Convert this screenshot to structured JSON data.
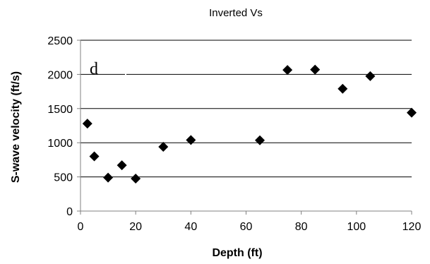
{
  "chart_data": {
    "type": "scatter",
    "title": "Inverted Vs",
    "xlabel": "Depth (ft)",
    "ylabel": "S-wave velocity (ft/s)",
    "xlim": [
      0,
      120
    ],
    "ylim": [
      0,
      2500
    ],
    "x_ticks": [
      0,
      20,
      40,
      60,
      80,
      100,
      120
    ],
    "y_ticks": [
      0,
      500,
      1000,
      1500,
      2000,
      2500
    ],
    "grid": "horizontal",
    "annotation": "d",
    "series": [
      {
        "marker": "diamond",
        "color": "#000000",
        "points": [
          {
            "x": 2.5,
            "y": 1280
          },
          {
            "x": 5,
            "y": 800
          },
          {
            "x": 10,
            "y": 490
          },
          {
            "x": 15,
            "y": 670
          },
          {
            "x": 20,
            "y": 475
          },
          {
            "x": 30,
            "y": 940
          },
          {
            "x": 40,
            "y": 1040
          },
          {
            "x": 65,
            "y": 1035
          },
          {
            "x": 75,
            "y": 2065
          },
          {
            "x": 85,
            "y": 2070
          },
          {
            "x": 95,
            "y": 1790
          },
          {
            "x": 105,
            "y": 1975
          },
          {
            "x": 120,
            "y": 1440
          }
        ]
      }
    ]
  }
}
